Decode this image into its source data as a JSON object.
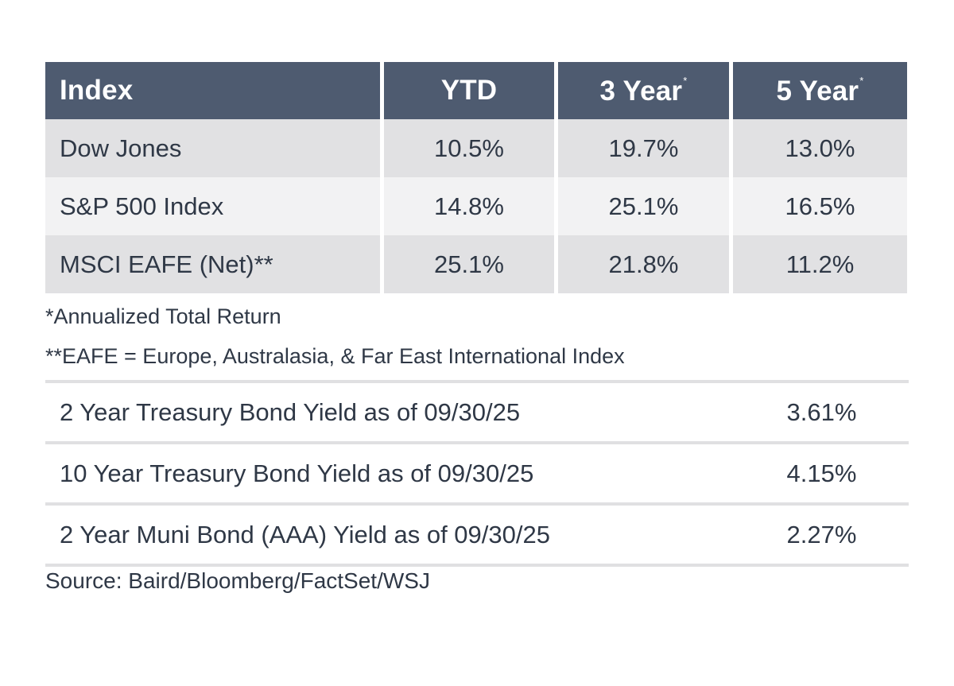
{
  "chart_data": {
    "type": "table",
    "columns": [
      {
        "label": "Index",
        "marker": ""
      },
      {
        "label": "YTD",
        "marker": ""
      },
      {
        "label": "3 Year",
        "marker": "*"
      },
      {
        "label": "5 Year",
        "marker": "*"
      }
    ],
    "rows": [
      {
        "index": "Dow Jones",
        "ytd": "10.5%",
        "three_year": "19.7%",
        "five_year": "13.0%"
      },
      {
        "index": "S&P 500 Index",
        "ytd": "14.8%",
        "three_year": "25.1%",
        "five_year": "16.5%"
      },
      {
        "index": "MSCI EAFE (Net)**",
        "ytd": "25.1%",
        "three_year": "21.8%",
        "five_year": "11.2%"
      }
    ]
  },
  "notes": [
    "*Annualized Total Return",
    "**EAFE = Europe, Australasia, & Far East International Index"
  ],
  "yields": [
    {
      "label": "2 Year Treasury Bond Yield as of 09/30/25",
      "value": "3.61%"
    },
    {
      "label": "10 Year Treasury Bond Yield as of 09/30/25",
      "value": "4.15%"
    },
    {
      "label": "2 Year Muni Bond (AAA) Yield as of 09/30/25",
      "value": "2.27%"
    }
  ],
  "source": "Source: Baird/Bloomberg/FactSet/WSJ",
  "colors": {
    "header_bg": "#4e5b70",
    "row_dark": "#e1e1e3",
    "row_light": "#f2f2f3",
    "text": "#2f3846",
    "rule": "#e0e0e2"
  }
}
